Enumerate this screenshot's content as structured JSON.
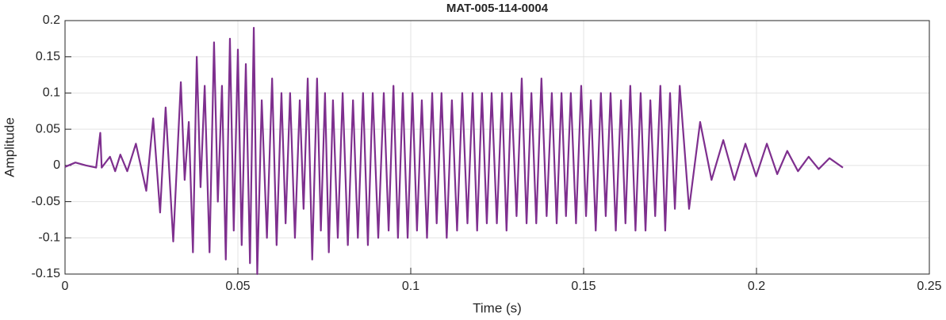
{
  "chart_data": {
    "type": "line",
    "title": "MAT-005-114-0004",
    "x_label": "Time (s)",
    "y_label": "Amplitude",
    "xlim": [
      0,
      0.25
    ],
    "xticks": [
      0,
      0.05,
      0.1,
      0.15,
      0.2,
      0.25
    ],
    "ylim": [
      -0.15,
      0.2
    ],
    "yticks": [
      -0.15,
      -0.1,
      -0.05,
      0,
      0.05,
      0.1,
      0.15,
      0.2
    ],
    "grid": true,
    "series": [
      {
        "color": "#7e2f8e",
        "x": [
          0,
          0.003,
          0.006,
          0.009,
          0.0102,
          0.0106,
          0.013,
          0.0145,
          0.016,
          0.018,
          0.0205,
          0.0235,
          0.0255,
          0.0275,
          0.0291,
          0.0313,
          0.0335,
          0.0346,
          0.0358,
          0.037,
          0.0381,
          0.0392,
          0.0404,
          0.0418,
          0.0431,
          0.0442,
          0.0454,
          0.0465,
          0.0477,
          0.0488,
          0.05,
          0.0511,
          0.0523,
          0.0535,
          0.0546,
          0.0556,
          0.0569,
          0.0584,
          0.0599,
          0.0612,
          0.0626,
          0.0638,
          0.0651,
          0.0665,
          0.0679,
          0.069,
          0.0702,
          0.0715,
          0.0729,
          0.074,
          0.0752,
          0.0763,
          0.0775,
          0.0789,
          0.0803,
          0.0818,
          0.0833,
          0.0847,
          0.0862,
          0.0876,
          0.089,
          0.0906,
          0.0922,
          0.0936,
          0.095,
          0.0963,
          0.0977,
          0.0991,
          0.1005,
          0.1018,
          0.1032,
          0.1047,
          0.1062,
          0.1075,
          0.1089,
          0.1104,
          0.1119,
          0.1134,
          0.1149,
          0.1164,
          0.1179,
          0.1192,
          0.1206,
          0.122,
          0.1234,
          0.1249,
          0.1264,
          0.1277,
          0.1291,
          0.1306,
          0.1321,
          0.1335,
          0.1349,
          0.1363,
          0.1378,
          0.1393,
          0.1408,
          0.1422,
          0.1436,
          0.1449,
          0.1463,
          0.1478,
          0.1493,
          0.1507,
          0.1521,
          0.1535,
          0.155,
          0.1564,
          0.1578,
          0.1593,
          0.1608,
          0.1621,
          0.1635,
          0.165,
          0.1665,
          0.1679,
          0.1693,
          0.1707,
          0.1722,
          0.1736,
          0.175,
          0.1764,
          0.1778,
          0.1805,
          0.1837,
          0.187,
          0.1904,
          0.1936,
          0.1968,
          0.1999,
          0.203,
          0.206,
          0.2089,
          0.212,
          0.2151,
          0.218,
          0.2211,
          0.225
        ],
        "values": [
          -0.002,
          0.004,
          0,
          -0.003,
          0.045,
          -0.003,
          0.012,
          -0.008,
          0.015,
          -0.008,
          0.03,
          -0.035,
          0.065,
          -0.065,
          0.08,
          -0.105,
          0.115,
          -0.02,
          0.06,
          -0.12,
          0.15,
          -0.03,
          0.11,
          -0.12,
          0.17,
          -0.05,
          0.11,
          -0.13,
          0.175,
          -0.09,
          0.16,
          -0.11,
          0.14,
          -0.135,
          0.19,
          -0.15,
          0.09,
          -0.1,
          0.12,
          -0.11,
          0.1,
          -0.08,
          0.1,
          -0.1,
          0.09,
          -0.06,
          0.12,
          -0.13,
          0.12,
          -0.09,
          0.1,
          -0.12,
          0.09,
          -0.1,
          0.1,
          -0.11,
          0.09,
          -0.1,
          0.1,
          -0.11,
          0.1,
          -0.1,
          0.1,
          -0.09,
          0.11,
          -0.1,
          0.1,
          -0.1,
          0.1,
          -0.09,
          0.09,
          -0.1,
          0.1,
          -0.08,
          0.1,
          -0.1,
          0.09,
          -0.09,
          0.1,
          -0.08,
          0.1,
          -0.09,
          0.1,
          -0.08,
          0.1,
          -0.08,
          0.1,
          -0.09,
          0.1,
          -0.07,
          0.12,
          -0.08,
          0.1,
          -0.08,
          0.12,
          -0.07,
          0.1,
          -0.08,
          0.1,
          -0.07,
          0.1,
          -0.08,
          0.11,
          -0.07,
          0.09,
          -0.09,
          0.1,
          -0.07,
          0.1,
          -0.09,
          0.09,
          -0.08,
          0.11,
          -0.09,
          0.1,
          -0.09,
          0.09,
          -0.07,
          0.11,
          -0.09,
          0.1,
          -0.06,
          0.11,
          -0.06,
          0.06,
          -0.02,
          0.035,
          -0.02,
          0.03,
          -0.015,
          0.03,
          -0.012,
          0.02,
          -0.008,
          0.012,
          -0.005,
          0.01,
          -0.003
        ]
      }
    ]
  }
}
